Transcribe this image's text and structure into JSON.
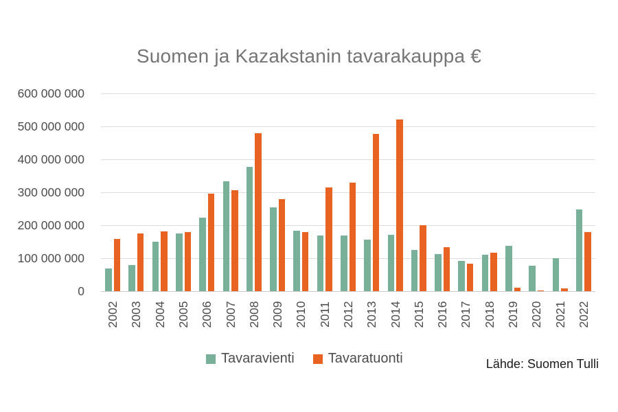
{
  "title": "Suomen ja Kazakstanin tavarakauppa €",
  "source": "Lähde: Suomen Tulli",
  "legend": {
    "vienti": "Tavaravienti",
    "tuonti": "Tavaratuonti"
  },
  "colors": {
    "vienti": "#78B09A",
    "tuonti": "#E86221",
    "grid": "#DCDCDC",
    "baseline": "#C9C9C9",
    "title_text": "#757575",
    "axis_text": "#4D4D4D",
    "source_text": "#1A1A1A"
  },
  "chart_data": {
    "type": "bar",
    "title": "Suomen ja Kazakstanin tavarakauppa €",
    "unit": "EUR",
    "categories": [
      "2002",
      "2003",
      "2004",
      "2005",
      "2006",
      "2007",
      "2008",
      "2009",
      "2010",
      "2011",
      "2012",
      "2013",
      "2014",
      "2015",
      "2016",
      "2017",
      "2018",
      "2019",
      "2020",
      "2021",
      "2022"
    ],
    "series": [
      {
        "name": "Tavaravienti",
        "color": "#78B09A",
        "values": [
          68000000,
          80000000,
          150000000,
          175000000,
          222000000,
          333000000,
          378000000,
          255000000,
          184000000,
          168000000,
          169000000,
          156000000,
          170000000,
          126000000,
          113000000,
          91000000,
          110000000,
          138000000,
          77000000,
          100000000,
          248000000
        ]
      },
      {
        "name": "Tavaratuonti",
        "color": "#E86221",
        "values": [
          158000000,
          175000000,
          182000000,
          180000000,
          295000000,
          307000000,
          480000000,
          280000000,
          179000000,
          315000000,
          330000000,
          478000000,
          520000000,
          200000000,
          134000000,
          84000000,
          117000000,
          10000000,
          2000000,
          8000000,
          179000000
        ]
      }
    ],
    "ylim": [
      0,
      600000000
    ],
    "ytick_labels_top_to_bottom": [
      "600 000 000",
      "500 000 000",
      "400 000 000",
      "300 000 000",
      "200 000 000",
      "100 000 000",
      "0"
    ],
    "grid": "horizontal",
    "legend_position": "bottom"
  }
}
